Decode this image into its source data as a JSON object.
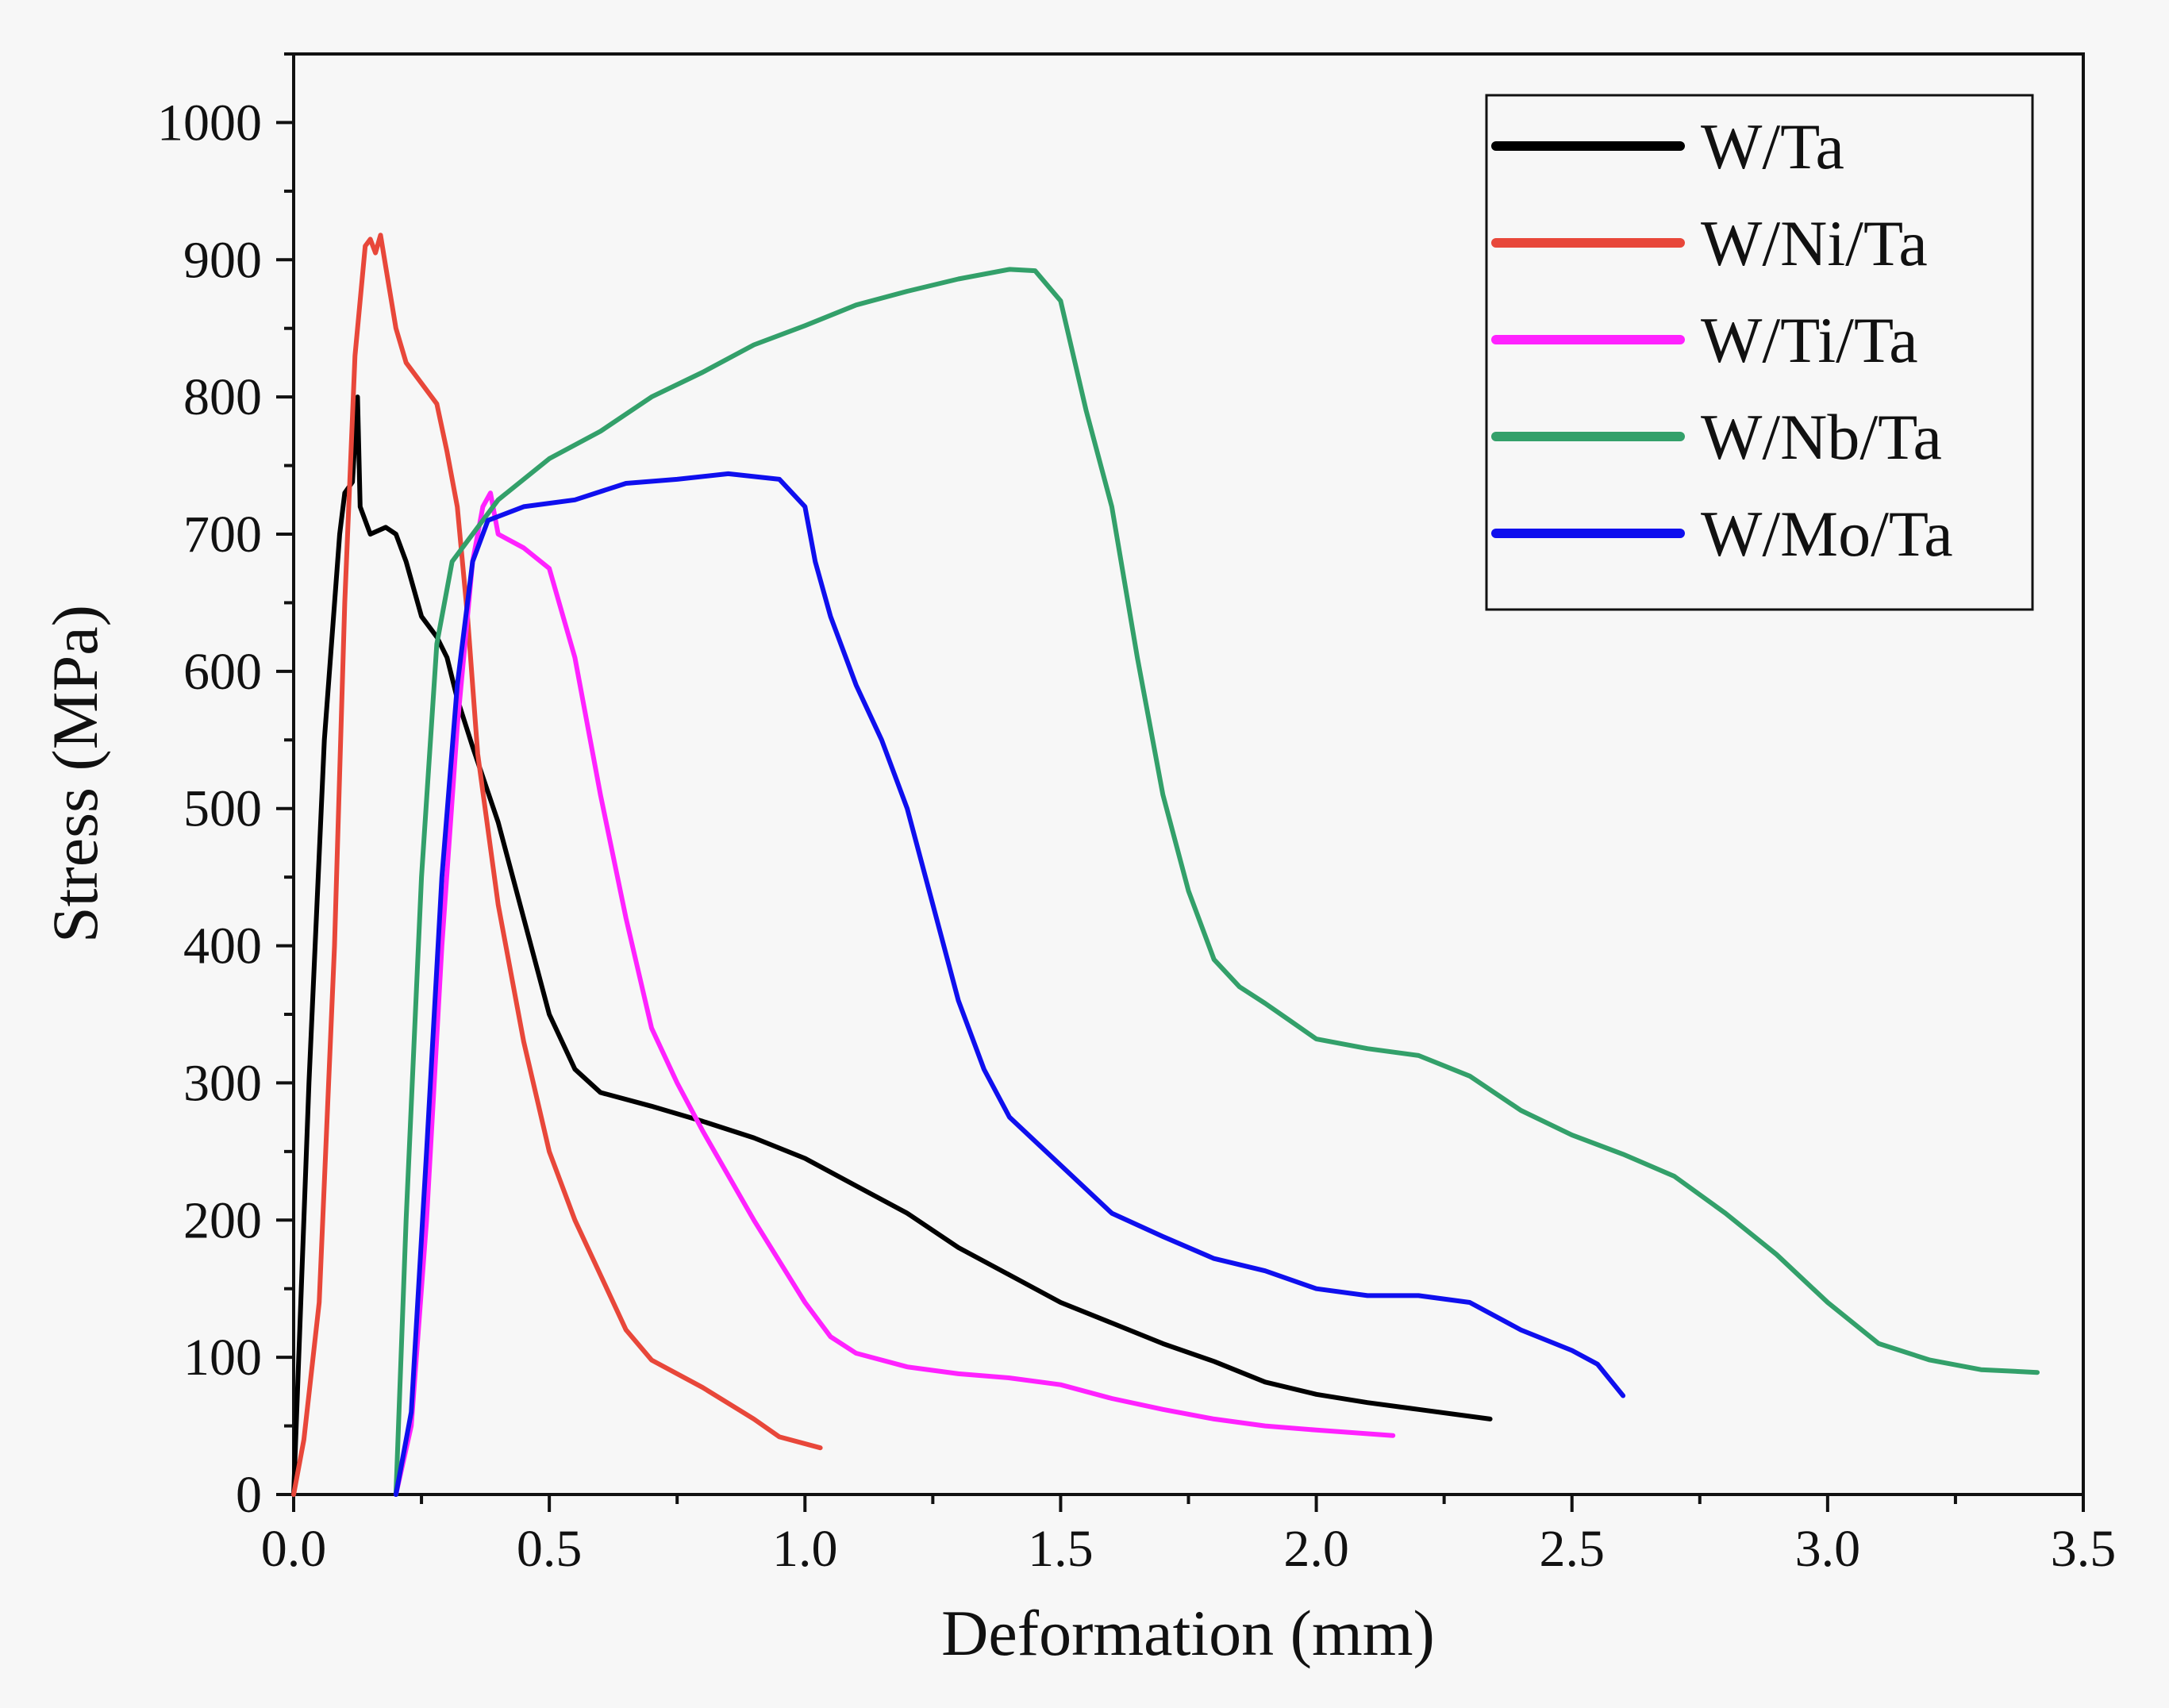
{
  "chart_data": {
    "type": "line",
    "title": "",
    "xlabel": "Deformation (mm)",
    "ylabel": "Stress (MPa)",
    "xlim": [
      0,
      3.5
    ],
    "ylim": [
      0,
      1050
    ],
    "xticks": [
      "0.0",
      "0.5",
      "1.0",
      "1.5",
      "2.0",
      "2.5",
      "3.0",
      "3.5"
    ],
    "yticks": [
      "0",
      "100",
      "200",
      "300",
      "400",
      "500",
      "600",
      "700",
      "800",
      "900",
      "1000"
    ],
    "grid": false,
    "legend_position": "top-right",
    "series": [
      {
        "name": "W/Ta",
        "color": "#000000",
        "points": [
          [
            0,
            0
          ],
          [
            0.03,
            300
          ],
          [
            0.06,
            550
          ],
          [
            0.09,
            700
          ],
          [
            0.1,
            730
          ],
          [
            0.115,
            738
          ],
          [
            0.125,
            800
          ],
          [
            0.13,
            720
          ],
          [
            0.15,
            700
          ],
          [
            0.18,
            705
          ],
          [
            0.2,
            700
          ],
          [
            0.22,
            680
          ],
          [
            0.25,
            640
          ],
          [
            0.28,
            625
          ],
          [
            0.3,
            610
          ],
          [
            0.32,
            580
          ],
          [
            0.35,
            545
          ],
          [
            0.4,
            490
          ],
          [
            0.45,
            420
          ],
          [
            0.5,
            350
          ],
          [
            0.55,
            310
          ],
          [
            0.6,
            293
          ],
          [
            0.7,
            283
          ],
          [
            0.8,
            272
          ],
          [
            0.9,
            260
          ],
          [
            1.0,
            245
          ],
          [
            1.1,
            225
          ],
          [
            1.2,
            205
          ],
          [
            1.3,
            180
          ],
          [
            1.4,
            160
          ],
          [
            1.5,
            140
          ],
          [
            1.6,
            125
          ],
          [
            1.7,
            110
          ],
          [
            1.8,
            97
          ],
          [
            1.9,
            82
          ],
          [
            2.0,
            73
          ],
          [
            2.1,
            67
          ],
          [
            2.2,
            62
          ],
          [
            2.34,
            55
          ]
        ]
      },
      {
        "name": "W/Ni/Ta",
        "color": "#e8473a",
        "points": [
          [
            0,
            0
          ],
          [
            0.02,
            40
          ],
          [
            0.05,
            140
          ],
          [
            0.08,
            400
          ],
          [
            0.1,
            650
          ],
          [
            0.12,
            830
          ],
          [
            0.14,
            910
          ],
          [
            0.15,
            915
          ],
          [
            0.16,
            905
          ],
          [
            0.17,
            918
          ],
          [
            0.18,
            895
          ],
          [
            0.2,
            850
          ],
          [
            0.22,
            825
          ],
          [
            0.25,
            810
          ],
          [
            0.28,
            795
          ],
          [
            0.3,
            760
          ],
          [
            0.32,
            720
          ],
          [
            0.34,
            640
          ],
          [
            0.36,
            540
          ],
          [
            0.4,
            430
          ],
          [
            0.45,
            330
          ],
          [
            0.5,
            250
          ],
          [
            0.55,
            200
          ],
          [
            0.6,
            160
          ],
          [
            0.65,
            120
          ],
          [
            0.7,
            98
          ],
          [
            0.8,
            78
          ],
          [
            0.9,
            55
          ],
          [
            0.95,
            42
          ],
          [
            1.03,
            34
          ]
        ]
      },
      {
        "name": "W/Ti/Ta",
        "color": "#ff22ff",
        "points": [
          [
            0.2,
            0
          ],
          [
            0.23,
            50
          ],
          [
            0.26,
            200
          ],
          [
            0.29,
            400
          ],
          [
            0.32,
            560
          ],
          [
            0.35,
            680
          ],
          [
            0.37,
            720
          ],
          [
            0.385,
            730
          ],
          [
            0.4,
            700
          ],
          [
            0.45,
            690
          ],
          [
            0.5,
            675
          ],
          [
            0.55,
            610
          ],
          [
            0.6,
            510
          ],
          [
            0.65,
            420
          ],
          [
            0.7,
            340
          ],
          [
            0.75,
            300
          ],
          [
            0.8,
            265
          ],
          [
            0.9,
            200
          ],
          [
            1.0,
            140
          ],
          [
            1.05,
            115
          ],
          [
            1.1,
            103
          ],
          [
            1.2,
            93
          ],
          [
            1.3,
            88
          ],
          [
            1.4,
            85
          ],
          [
            1.5,
            80
          ],
          [
            1.6,
            70
          ],
          [
            1.7,
            62
          ],
          [
            1.8,
            55
          ],
          [
            1.9,
            50
          ],
          [
            2.0,
            47
          ],
          [
            2.15,
            43
          ]
        ]
      },
      {
        "name": "W/Nb/Ta",
        "color": "#33a06a",
        "points": [
          [
            0.2,
            0
          ],
          [
            0.22,
            200
          ],
          [
            0.25,
            450
          ],
          [
            0.28,
            620
          ],
          [
            0.31,
            680
          ],
          [
            0.35,
            700
          ],
          [
            0.4,
            725
          ],
          [
            0.5,
            755
          ],
          [
            0.6,
            775
          ],
          [
            0.7,
            800
          ],
          [
            0.8,
            818
          ],
          [
            0.9,
            838
          ],
          [
            1.0,
            852
          ],
          [
            1.1,
            867
          ],
          [
            1.2,
            877
          ],
          [
            1.3,
            886
          ],
          [
            1.4,
            893
          ],
          [
            1.45,
            892
          ],
          [
            1.5,
            870
          ],
          [
            1.55,
            790
          ],
          [
            1.6,
            720
          ],
          [
            1.65,
            610
          ],
          [
            1.7,
            510
          ],
          [
            1.75,
            440
          ],
          [
            1.8,
            390
          ],
          [
            1.85,
            370
          ],
          [
            1.9,
            358
          ],
          [
            1.95,
            345
          ],
          [
            2.0,
            332
          ],
          [
            2.1,
            325
          ],
          [
            2.2,
            320
          ],
          [
            2.3,
            305
          ],
          [
            2.4,
            280
          ],
          [
            2.5,
            262
          ],
          [
            2.6,
            248
          ],
          [
            2.7,
            232
          ],
          [
            2.8,
            205
          ],
          [
            2.9,
            175
          ],
          [
            3.0,
            140
          ],
          [
            3.1,
            110
          ],
          [
            3.2,
            98
          ],
          [
            3.3,
            91
          ],
          [
            3.41,
            89
          ]
        ]
      },
      {
        "name": "W/Mo/Ta",
        "color": "#0f0fee",
        "points": [
          [
            0.2,
            0
          ],
          [
            0.23,
            60
          ],
          [
            0.26,
            250
          ],
          [
            0.29,
            450
          ],
          [
            0.32,
            590
          ],
          [
            0.35,
            680
          ],
          [
            0.38,
            710
          ],
          [
            0.45,
            720
          ],
          [
            0.55,
            725
          ],
          [
            0.65,
            737
          ],
          [
            0.75,
            740
          ],
          [
            0.85,
            744
          ],
          [
            0.95,
            740
          ],
          [
            1.0,
            720
          ],
          [
            1.02,
            680
          ],
          [
            1.05,
            640
          ],
          [
            1.1,
            590
          ],
          [
            1.15,
            550
          ],
          [
            1.2,
            500
          ],
          [
            1.25,
            430
          ],
          [
            1.3,
            360
          ],
          [
            1.35,
            310
          ],
          [
            1.4,
            275
          ],
          [
            1.5,
            240
          ],
          [
            1.6,
            205
          ],
          [
            1.7,
            188
          ],
          [
            1.8,
            172
          ],
          [
            1.9,
            163
          ],
          [
            2.0,
            150
          ],
          [
            2.1,
            145
          ],
          [
            2.2,
            145
          ],
          [
            2.3,
            140
          ],
          [
            2.4,
            120
          ],
          [
            2.5,
            105
          ],
          [
            2.55,
            95
          ],
          [
            2.6,
            72
          ]
        ]
      }
    ]
  }
}
